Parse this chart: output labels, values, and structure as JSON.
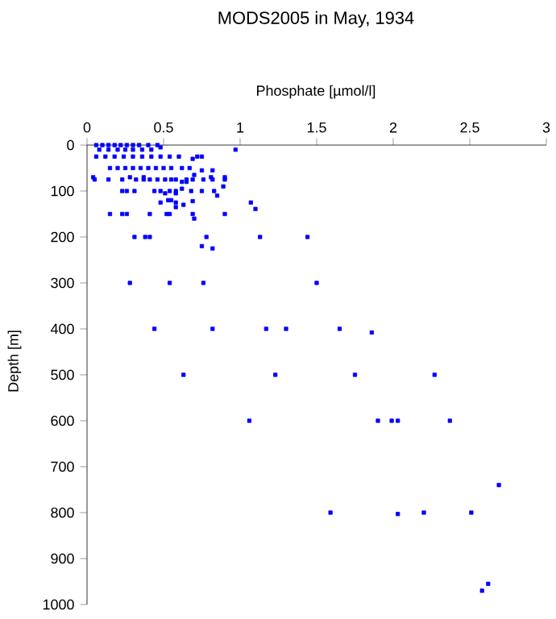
{
  "chart_data": {
    "type": "scatter",
    "title": "MODS2005 in May, 1934",
    "xlabel": "Phosphate [µmol/l]",
    "ylabel": "Depth [m]",
    "xlim": [
      0,
      3
    ],
    "xticks": [
      0,
      0.5,
      1,
      1.5,
      2,
      2.5,
      3
    ],
    "ylim": [
      1000,
      0
    ],
    "yticks": [
      0,
      100,
      200,
      300,
      400,
      500,
      600,
      700,
      800,
      900,
      1000
    ],
    "marker": "square",
    "grid": false,
    "series": [
      {
        "color": "#0000ff",
        "x": [
          0.06,
          0.1,
          0.14,
          0.18,
          0.22,
          0.26,
          0.3,
          0.34,
          0.4,
          0.46,
          0.08,
          0.14,
          0.2,
          0.25,
          0.3,
          0.36,
          0.42,
          0.48,
          0.97,
          0.06,
          0.12,
          0.18,
          0.24,
          0.3,
          0.36,
          0.42,
          0.48,
          0.54,
          0.6,
          0.72,
          0.75,
          0.69,
          0.15,
          0.2,
          0.25,
          0.3,
          0.35,
          0.4,
          0.45,
          0.5,
          0.55,
          0.62,
          0.67,
          0.75,
          0.82,
          0.7,
          0.04,
          0.28,
          0.37,
          0.81,
          0.9,
          0.05,
          0.14,
          0.23,
          0.32,
          0.37,
          0.41,
          0.46,
          0.51,
          0.55,
          0.58,
          0.65,
          0.69,
          0.76,
          0.82,
          0.9,
          0.62,
          0.65,
          0.89,
          0.62,
          0.23,
          0.26,
          0.31,
          0.44,
          0.48,
          0.54,
          0.58,
          0.68,
          0.75,
          0.83,
          0.51,
          0.58,
          0.85,
          0.48,
          0.53,
          0.55,
          0.58,
          0.69,
          0.63,
          0.58,
          1.07,
          1.1,
          0.15,
          0.23,
          0.26,
          0.41,
          0.52,
          0.54,
          0.69,
          0.9,
          0.7,
          0.31,
          0.38,
          0.41,
          0.78,
          1.13,
          1.44,
          0.75,
          0.82,
          0.28,
          0.54,
          0.76,
          1.5,
          0.44,
          0.82,
          1.17,
          1.3,
          1.65,
          1.86,
          0.63,
          1.23,
          1.75,
          2.27,
          1.06,
          1.9,
          1.99,
          2.03,
          2.37,
          2.69,
          1.59,
          2.03,
          2.2,
          2.51,
          2.62,
          2.58
        ],
        "values": [
          0,
          0,
          0,
          0,
          0,
          0,
          0,
          0,
          0,
          0,
          10,
          10,
          10,
          10,
          10,
          10,
          10,
          5,
          10,
          25,
          25,
          25,
          25,
          25,
          25,
          25,
          25,
          25,
          25,
          25,
          25,
          30,
          50,
          50,
          50,
          50,
          50,
          50,
          50,
          50,
          50,
          50,
          50,
          55,
          55,
          65,
          70,
          70,
          70,
          70,
          70,
          75,
          75,
          75,
          75,
          75,
          75,
          75,
          75,
          75,
          75,
          75,
          75,
          75,
          75,
          75,
          80,
          80,
          90,
          95,
          100,
          100,
          100,
          100,
          100,
          100,
          100,
          100,
          100,
          100,
          105,
          105,
          110,
          125,
          120,
          120,
          125,
          122,
          130,
          135,
          125,
          139,
          150,
          150,
          150,
          150,
          150,
          150,
          150,
          150,
          160,
          200,
          200,
          200,
          200,
          200,
          200,
          220,
          225,
          300,
          300,
          300,
          300,
          400,
          400,
          400,
          400,
          400,
          408,
          500,
          500,
          500,
          500,
          600,
          600,
          600,
          600,
          600,
          740,
          800,
          803,
          800,
          800,
          955,
          970
        ]
      }
    ]
  }
}
